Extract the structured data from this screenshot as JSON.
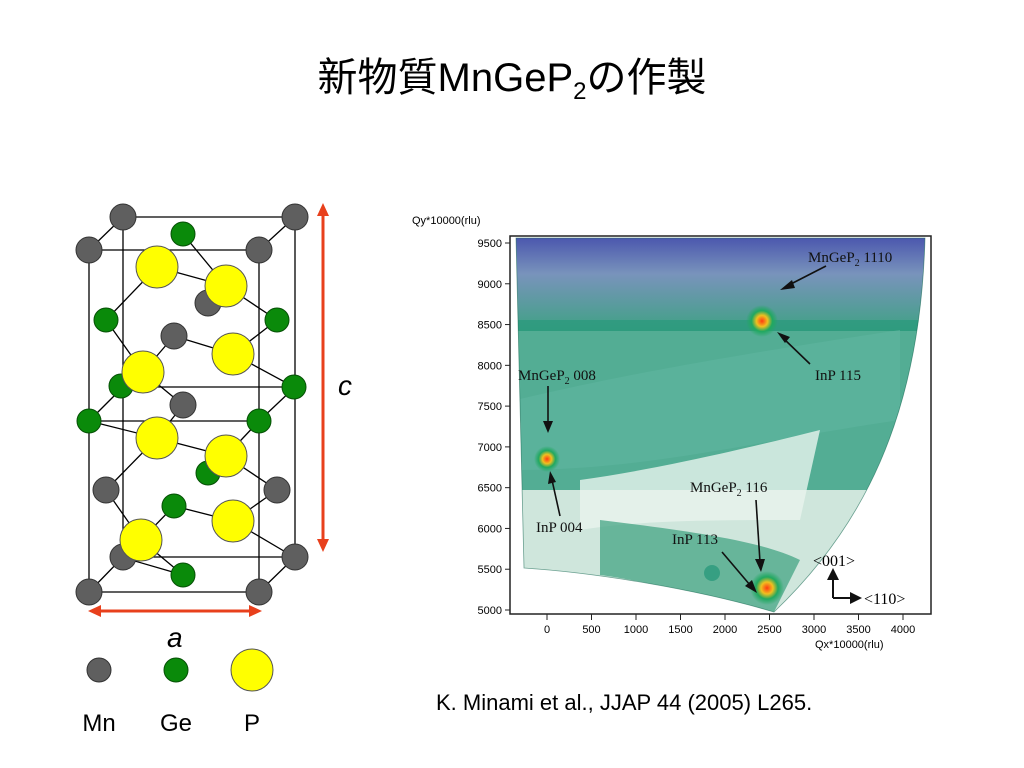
{
  "slide": {
    "title_main": "新物質MnGeP",
    "title_sub": "2",
    "title_tail": "の作製"
  },
  "crystal": {
    "c_label": "c",
    "a_label": "a",
    "legend": [
      {
        "label": "Mn",
        "color": "#5f5f5f"
      },
      {
        "label": "Ge",
        "color": "#0a8a0a"
      },
      {
        "label": "P",
        "color": "#ffff00"
      }
    ],
    "arrow_color": "#e8401c"
  },
  "rsm": {
    "y_axis_title": "Qy*10000(rlu)",
    "x_axis_title": "Qx*10000(rlu)",
    "y_ticks": [
      "9500",
      "9000",
      "8500",
      "8000",
      "7500",
      "7000",
      "6500",
      "6000",
      "5500",
      "5000"
    ],
    "x_ticks": [
      "0",
      "500",
      "1000",
      "1500",
      "2000",
      "2500",
      "3000",
      "3500",
      "4000"
    ],
    "peaks": [
      {
        "text": "MnGeP2 1110",
        "name": "MnGeP",
        "sub": "2",
        "index": " 1110"
      },
      {
        "text": "InP 115"
      },
      {
        "text": "MnGeP2 008",
        "name": "MnGeP",
        "sub": "2",
        "index": " 008"
      },
      {
        "text": "InP 004"
      },
      {
        "text": "MnGeP2 116",
        "name": "MnGeP",
        "sub": "2",
        "index": " 116"
      },
      {
        "text": "InP 113"
      }
    ],
    "direction_up": "<001>",
    "direction_right": "<110>"
  },
  "citation": "K. Minami et al., JJAP 44 (2005) L265."
}
